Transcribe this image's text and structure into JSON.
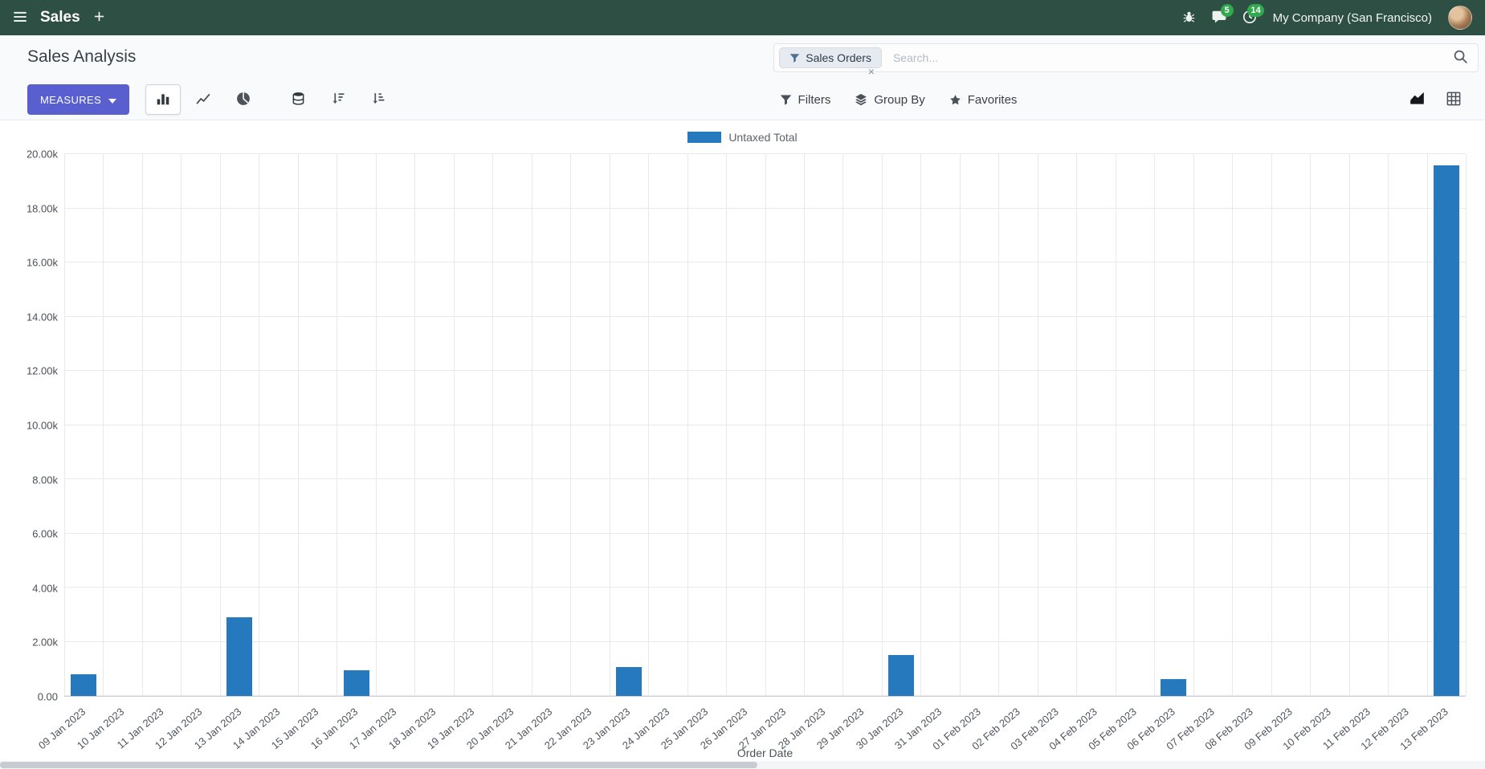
{
  "navbar": {
    "app_name": "Sales",
    "company": "My Company (San Francisco)",
    "messages_badge": "5",
    "activities_badge": "14"
  },
  "control_panel": {
    "title": "Sales Analysis",
    "measures_label": "Measures",
    "filters_label": "Filters",
    "group_by_label": "Group By",
    "favorites_label": "Favorites"
  },
  "search": {
    "facet_label": "Sales Orders",
    "remove_label": "×",
    "placeholder": "Search..."
  },
  "colors": {
    "navbar_bg": "#2e4f44",
    "primary_button": "#5a5fd0",
    "bar_color": "#2779bd",
    "badge_green": "#31a94e",
    "gridline": "#e7e9ec"
  },
  "chart_data": {
    "type": "bar",
    "title": "",
    "xlabel": "Order Date",
    "ylabel": "",
    "ylim": [
      0,
      20000
    ],
    "grid": true,
    "legend_position": "top-center",
    "y_ticks": [
      "0.00",
      "2.00k",
      "4.00k",
      "6.00k",
      "8.00k",
      "10.00k",
      "12.00k",
      "14.00k",
      "16.00k",
      "18.00k",
      "20.00k"
    ],
    "categories": [
      "09 Jan 2023",
      "10 Jan 2023",
      "11 Jan 2023",
      "12 Jan 2023",
      "13 Jan 2023",
      "14 Jan 2023",
      "15 Jan 2023",
      "16 Jan 2023",
      "17 Jan 2023",
      "18 Jan 2023",
      "19 Jan 2023",
      "20 Jan 2023",
      "21 Jan 2023",
      "22 Jan 2023",
      "23 Jan 2023",
      "24 Jan 2023",
      "25 Jan 2023",
      "26 Jan 2023",
      "27 Jan 2023",
      "28 Jan 2023",
      "29 Jan 2023",
      "30 Jan 2023",
      "31 Jan 2023",
      "01 Feb 2023",
      "02 Feb 2023",
      "03 Feb 2023",
      "04 Feb 2023",
      "05 Feb 2023",
      "06 Feb 2023",
      "07 Feb 2023",
      "08 Feb 2023",
      "09 Feb 2023",
      "10 Feb 2023",
      "11 Feb 2023",
      "12 Feb 2023",
      "13 Feb 2023"
    ],
    "series": [
      {
        "name": "Untaxed Total",
        "color": "#2779bd",
        "values": [
          800,
          0,
          0,
          0,
          2900,
          0,
          0,
          950,
          0,
          0,
          0,
          0,
          0,
          0,
          1080,
          0,
          0,
          0,
          0,
          0,
          0,
          1500,
          0,
          0,
          0,
          0,
          0,
          0,
          620,
          0,
          0,
          0,
          0,
          0,
          0,
          19600
        ]
      }
    ]
  }
}
